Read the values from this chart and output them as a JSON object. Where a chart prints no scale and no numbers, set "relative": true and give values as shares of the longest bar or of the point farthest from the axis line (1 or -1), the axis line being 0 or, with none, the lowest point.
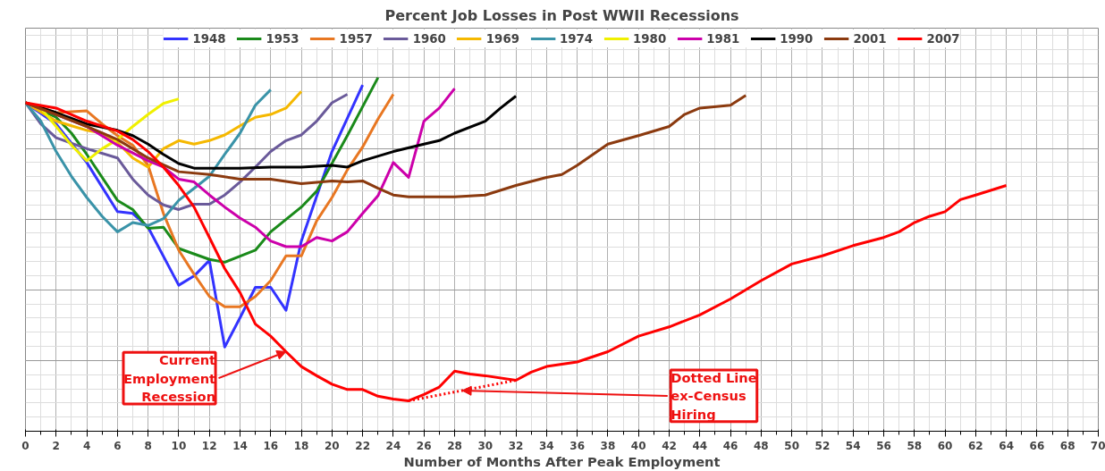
{
  "chart_data": {
    "type": "line",
    "title": "Percent Job Losses in Post WWII Recessions",
    "xlabel": "Number of Months After Peak Employment",
    "relative": true,
    "xlim": [
      0,
      70
    ],
    "xticks": [
      0,
      2,
      4,
      6,
      8,
      10,
      12,
      14,
      16,
      18,
      20,
      22,
      24,
      26,
      28,
      30,
      32,
      34,
      36,
      38,
      40,
      42,
      44,
      46,
      48,
      50,
      52,
      54,
      56,
      58,
      60,
      62,
      64,
      66,
      68,
      70
    ],
    "grid": true,
    "legend": "top",
    "line_style": "solid",
    "marker": "none",
    "series": [
      {
        "name": "1948",
        "color": "#3333ff",
        "x": [
          0,
          2,
          4,
          6,
          7,
          8,
          10,
          11,
          12,
          13,
          14,
          15,
          16,
          17,
          18,
          20,
          22
        ],
        "values": [
          0.929,
          0.869,
          0.76,
          0.621,
          0.616,
          0.577,
          0.413,
          0.439,
          0.483,
          0.238,
          0.321,
          0.407,
          0.407,
          0.342,
          0.538,
          0.791,
          0.979
        ]
      },
      {
        "name": "1953",
        "color": "#1a8a1a",
        "x": [
          0,
          2,
          3,
          4,
          6,
          7,
          8,
          9,
          10,
          12,
          13,
          15,
          16,
          18,
          19,
          21,
          23
        ],
        "values": [
          0.929,
          0.888,
          0.843,
          0.783,
          0.653,
          0.627,
          0.574,
          0.577,
          0.517,
          0.486,
          0.478,
          0.512,
          0.564,
          0.634,
          0.679,
          0.836,
          1.0
        ]
      },
      {
        "name": "1957",
        "color": "#e87722",
        "x": [
          0,
          2,
          4,
          5,
          6,
          7,
          8,
          9,
          10,
          11,
          12,
          13,
          14,
          15,
          16,
          17,
          18,
          19,
          20,
          21,
          22,
          23,
          24
        ],
        "values": [
          0.929,
          0.901,
          0.906,
          0.869,
          0.836,
          0.809,
          0.752,
          0.616,
          0.512,
          0.444,
          0.381,
          0.352,
          0.352,
          0.381,
          0.426,
          0.496,
          0.496,
          0.595,
          0.661,
          0.739,
          0.804,
          0.883,
          0.953
        ]
      },
      {
        "name": "1960",
        "color": "#6a5a9a",
        "x": [
          0,
          1,
          2,
          4,
          6,
          7,
          8,
          9,
          10,
          11,
          12,
          13,
          14,
          15,
          16,
          17,
          18,
          19,
          20,
          21
        ],
        "values": [
          0.929,
          0.869,
          0.83,
          0.799,
          0.773,
          0.713,
          0.668,
          0.64,
          0.627,
          0.642,
          0.642,
          0.668,
          0.705,
          0.747,
          0.791,
          0.822,
          0.838,
          0.877,
          0.929,
          0.953
        ]
      },
      {
        "name": "1969",
        "color": "#f5b800",
        "x": [
          0,
          2,
          3,
          4,
          5,
          6,
          7,
          8,
          9,
          10,
          11,
          12,
          13,
          14,
          15,
          16,
          17,
          18
        ],
        "values": [
          0.929,
          0.877,
          0.864,
          0.851,
          0.843,
          0.817,
          0.773,
          0.747,
          0.799,
          0.822,
          0.812,
          0.822,
          0.838,
          0.864,
          0.888,
          0.896,
          0.914,
          0.961
        ]
      },
      {
        "name": "1974",
        "color": "#3a93a8",
        "x": [
          0,
          1,
          2,
          3,
          4,
          5,
          6,
          7,
          8,
          9,
          10,
          11,
          12,
          13,
          14,
          15,
          16
        ],
        "values": [
          0.929,
          0.877,
          0.791,
          0.721,
          0.661,
          0.608,
          0.564,
          0.59,
          0.582,
          0.601,
          0.653,
          0.687,
          0.721,
          0.783,
          0.843,
          0.922,
          0.966
        ]
      },
      {
        "name": "1980",
        "color": "#f0f000",
        "x": [
          0,
          1,
          2,
          3,
          4,
          5,
          6,
          7,
          8,
          9,
          10
        ],
        "values": [
          0.929,
          0.914,
          0.862,
          0.809,
          0.765,
          0.799,
          0.825,
          0.862,
          0.896,
          0.927,
          0.94
        ]
      },
      {
        "name": "1981",
        "color": "#cc00aa",
        "x": [
          0,
          2,
          4,
          6,
          8,
          9,
          10,
          11,
          12,
          13,
          14,
          15,
          16,
          17,
          18,
          19,
          20,
          21,
          22,
          23,
          24,
          25,
          26,
          27,
          28
        ],
        "values": [
          0.929,
          0.896,
          0.862,
          0.809,
          0.765,
          0.747,
          0.713,
          0.705,
          0.668,
          0.634,
          0.603,
          0.577,
          0.538,
          0.522,
          0.522,
          0.548,
          0.538,
          0.564,
          0.616,
          0.666,
          0.76,
          0.718,
          0.877,
          0.914,
          0.969
        ]
      },
      {
        "name": "1990",
        "color": "#000000",
        "x": [
          0,
          2,
          4,
          6,
          7,
          8,
          9,
          10,
          11,
          12,
          14,
          16,
          18,
          20,
          21,
          22,
          24,
          26,
          27,
          28,
          30,
          31,
          32
        ],
        "values": [
          0.929,
          0.901,
          0.869,
          0.851,
          0.836,
          0.812,
          0.783,
          0.757,
          0.744,
          0.744,
          0.744,
          0.747,
          0.747,
          0.752,
          0.747,
          0.765,
          0.791,
          0.812,
          0.822,
          0.843,
          0.877,
          0.914,
          0.948
        ]
      },
      {
        "name": "2001",
        "color": "#8b3a0f",
        "x": [
          0,
          2,
          4,
          6,
          8,
          10,
          12,
          14,
          16,
          18,
          20,
          21,
          22,
          23,
          24,
          25,
          28,
          30,
          32,
          34,
          35,
          36,
          38,
          40,
          42,
          43,
          44,
          46,
          47
        ],
        "values": [
          0.929,
          0.896,
          0.862,
          0.825,
          0.773,
          0.734,
          0.726,
          0.713,
          0.713,
          0.7,
          0.708,
          0.705,
          0.708,
          0.687,
          0.668,
          0.663,
          0.663,
          0.668,
          0.695,
          0.718,
          0.726,
          0.752,
          0.812,
          0.836,
          0.862,
          0.896,
          0.914,
          0.922,
          0.95
        ]
      },
      {
        "name": "2007",
        "color": "#ff0000",
        "x": [
          0,
          2,
          4,
          6,
          7,
          8,
          9,
          10,
          11,
          12,
          13,
          14,
          15,
          16,
          17,
          18,
          19,
          20,
          21,
          22,
          23,
          24,
          25,
          26,
          27,
          28,
          29,
          30,
          32,
          33,
          34,
          36,
          38,
          40,
          42,
          44,
          46,
          48,
          50,
          52,
          54,
          56,
          57,
          58,
          59,
          60,
          61,
          62,
          64
        ],
        "values": [
          0.929,
          0.914,
          0.877,
          0.849,
          0.825,
          0.791,
          0.747,
          0.695,
          0.634,
          0.548,
          0.46,
          0.392,
          0.303,
          0.269,
          0.225,
          0.183,
          0.157,
          0.133,
          0.118,
          0.118,
          0.099,
          0.091,
          0.086,
          0.104,
          0.125,
          0.17,
          0.162,
          0.157,
          0.144,
          0.167,
          0.183,
          0.196,
          0.225,
          0.269,
          0.295,
          0.329,
          0.374,
          0.426,
          0.473,
          0.496,
          0.525,
          0.548,
          0.564,
          0.59,
          0.608,
          0.621,
          0.655,
          0.668,
          0.695
        ]
      },
      {
        "color": "#ff0000",
        "line_style": "dotted",
        "x": [
          25,
          28.5,
          32
        ],
        "values": [
          0.086,
          0.115,
          0.144
        ]
      }
    ],
    "annotations": [
      {
        "text": "Current\nEmployment\nRecession",
        "x": 17,
        "y": 0.225
      },
      {
        "text": "Dotted Line\nex-Census\nHiring",
        "x": 28.5,
        "y": 0.115
      }
    ]
  }
}
